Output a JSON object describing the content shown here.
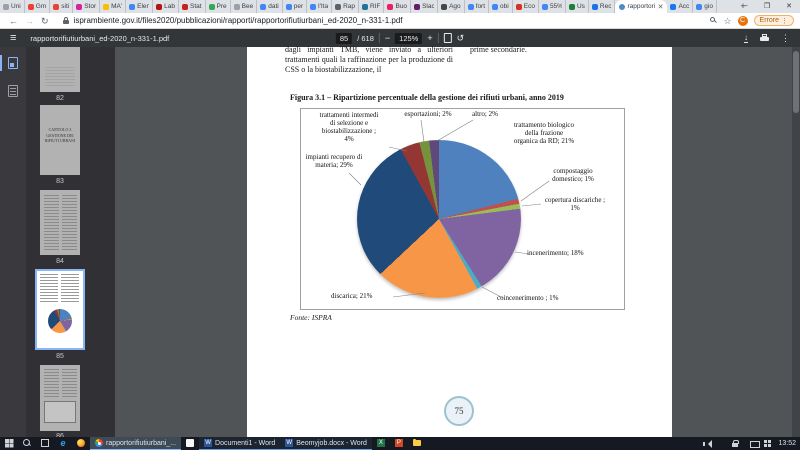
{
  "browser": {
    "tabs": [
      {
        "label": "Uni",
        "icon": "globe-icon",
        "color": "#9aa0a6"
      },
      {
        "label": "Gm",
        "icon": "gmail-icon",
        "color": "#ea4335"
      },
      {
        "label": "siti",
        "icon": "gmail-icon",
        "color": "#ea4335"
      },
      {
        "label": "Stor",
        "icon": "instagram-icon",
        "color": "#d6249f"
      },
      {
        "label": "MA'",
        "icon": "drive-icon",
        "color": "#fbbc04"
      },
      {
        "label": "Elen",
        "icon": "docs-icon",
        "color": "#4285f4"
      },
      {
        "label": "Lab",
        "icon": "app-icon",
        "color": "#b31412"
      },
      {
        "label": "Stat",
        "icon": "app-icon",
        "color": "#c5221f"
      },
      {
        "label": "Pre",
        "icon": "meet-icon",
        "color": "#34a853"
      },
      {
        "label": "Bee",
        "icon": "app-icon",
        "color": "#9aa0a6"
      },
      {
        "label": "dati",
        "icon": "google-icon",
        "color": "#4285f4"
      },
      {
        "label": "per",
        "icon": "google-icon",
        "color": "#4285f4"
      },
      {
        "label": "l'Ita",
        "icon": "google-icon",
        "color": "#4285f4"
      },
      {
        "label": "Rap",
        "icon": "grid-icon",
        "color": "#5f6368"
      },
      {
        "label": "RIF",
        "icon": "wordpress-icon",
        "color": "#21759b"
      },
      {
        "label": "Buo",
        "icon": "app-icon",
        "color": "#e91e63"
      },
      {
        "label": "Slac",
        "icon": "slack-icon",
        "color": "#611f69"
      },
      {
        "label": "Ago",
        "icon": "app-icon",
        "color": "#444746"
      },
      {
        "label": "fort",
        "icon": "google-icon",
        "color": "#4285f4"
      },
      {
        "label": "obi",
        "icon": "google-icon",
        "color": "#4285f4"
      },
      {
        "label": "Eco",
        "icon": "app-icon",
        "color": "#d93025"
      },
      {
        "label": "55%",
        "icon": "google-icon",
        "color": "#4285f4"
      },
      {
        "label": "Us",
        "icon": "app-icon",
        "color": "#188038"
      },
      {
        "label": "Rec",
        "icon": "app-icon",
        "color": "#1a73e8"
      },
      {
        "label": "rapportorifiutiurbani_ed-2020_n-331-1.pdf",
        "icon": "pdf-icon",
        "color": "#4e8bc4",
        "active": true
      },
      {
        "label": "Acc",
        "icon": "facebook-icon",
        "color": "#1877f2"
      },
      {
        "label": "gio",
        "icon": "google-icon",
        "color": "#4285f4"
      }
    ],
    "new_tab_label": "+",
    "window_controls": {
      "minimize": "─",
      "maximize": "❐",
      "close": "✕"
    },
    "address": {
      "url": "isprambiente.gov.it/files2020/pubblicazioni/rapporti/rapportorifiutiurbani_ed-2020_n-331-1.pdf",
      "avatar_letter": "C",
      "error_label": "Errore",
      "error_menu": "⋮"
    }
  },
  "pdf_toolbar": {
    "filename": "rapportorifiutiurbani_ed-2020_n-331-1.pdf",
    "page_current": "85",
    "page_total": "/ 618",
    "zoom_out": "−",
    "zoom_level": "125%",
    "zoom_in": "+",
    "more": "⋮"
  },
  "sidebar": {
    "pages": [
      "82",
      "83",
      "84",
      "85",
      "86"
    ],
    "active_page": "85",
    "thumb83_text": "CAPITOLO 3\nGESTIONE DEI\nRIFIUTI URBANI"
  },
  "document": {
    "col_left": "dagli impianti TMB, viene inviato a ulteriori trattamenti quali la raffinazione per la produzione di CSS o la biostabilizzazione, il",
    "col_right": "prime secondarie.",
    "figure_title": "Figura 3.1 – Ripartizione percentuale della gestione dei rifiuti urbani, anno 2019",
    "fonte": "Fonte: ISPRA",
    "page_badge": "75"
  },
  "chart_data": {
    "type": "pie",
    "title": "Figura 3.1 – Ripartizione percentuale della gestione dei rifiuti urbani, anno 2019",
    "source": "Fonte: ISPRA",
    "unit": "%",
    "slices": [
      {
        "label": "trattamento biologico della frazione organica da RD",
        "value": 21,
        "color": "#4E81BD"
      },
      {
        "label": "compostaggio domestico",
        "value": 1,
        "color": "#C0504D"
      },
      {
        "label": "copertura discariche",
        "value": 1,
        "color": "#9BBB59"
      },
      {
        "label": "incenerimento",
        "value": 18,
        "color": "#8064A2"
      },
      {
        "label": "coincenerimento",
        "value": 1,
        "color": "#4BACC6"
      },
      {
        "label": "discarica",
        "value": 21,
        "color": "#F79646"
      },
      {
        "label": "impianti recupero di materia",
        "value": 29,
        "color": "#1F4A7A"
      },
      {
        "label": "trattamenti intermedi di selezione e biostabilizzazione",
        "value": 4,
        "color": "#943634"
      },
      {
        "label": "esportazioni",
        "value": 2,
        "color": "#76923C"
      },
      {
        "label": "altro",
        "value": 2,
        "color": "#5F497A"
      }
    ],
    "display_labels": {
      "trattamenti": "trattamenti intermedi\ndi selezione e\nbiostabilizzazione ;\n4%",
      "esportazioni": "esportazioni; 2%",
      "altro": "altro; 2%",
      "biologico": "trattamento biologico\ndella frazione\norganica da RD; 21%",
      "compostaggio": "compostaggio\ndomestico; 1%",
      "copertura": "copertura discariche ;\n1%",
      "incenerimento": "incenerimento; 18%",
      "coincenerimento": "coincenerimento ; 1%",
      "discarica": "discarica; 21%",
      "impianti": "impianti recupero di\nmateria; 29%"
    }
  },
  "taskbar": {
    "items": [
      {
        "name": "start-button",
        "icon": "win"
      },
      {
        "name": "search-button",
        "icon": "search"
      },
      {
        "name": "task-view-button",
        "icon": "tview"
      },
      {
        "name": "ie-shortcut",
        "icon": "ie",
        "glyph": "e"
      },
      {
        "name": "firefox-shortcut",
        "icon": "ff"
      },
      {
        "name": "chrome-task",
        "icon": "chrome",
        "label": "rapportorifiutiurbani_...",
        "active": true
      },
      {
        "name": "document-task",
        "icon": "doc"
      },
      {
        "name": "word-task-1",
        "icon": "word",
        "glyph": "W",
        "label": "Documenti1 - Word",
        "open": true
      },
      {
        "name": "word-task-2",
        "icon": "word",
        "glyph": "W",
        "label": "Beomyjob.docx - Word",
        "open": true
      },
      {
        "name": "excel-task",
        "icon": "excel",
        "glyph": "X"
      },
      {
        "name": "powerpoint-task",
        "icon": "ppt",
        "glyph": "P"
      },
      {
        "name": "folder-task",
        "icon": "folder"
      }
    ],
    "tray_time": "13:52"
  }
}
